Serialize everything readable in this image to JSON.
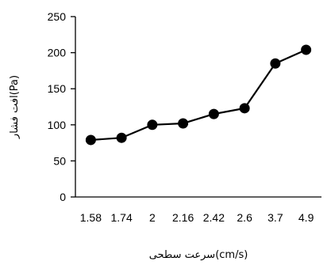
{
  "chart_data": {
    "type": "line",
    "categories": [
      "1.58",
      "1.74",
      "2",
      "2.16",
      "2.42",
      "2.6",
      "3.7",
      "4.9"
    ],
    "series": [
      {
        "values": [
          79,
          82,
          100,
          102,
          115,
          123,
          185,
          204
        ]
      }
    ],
    "xlabel": "سرعت سطحی(cm/s)",
    "ylabel": "افت فشار(Pa)",
    "ylim": [
      0,
      250
    ],
    "yticks": [
      "0",
      "50",
      "100",
      "150",
      "200",
      "250"
    ],
    "grid": false,
    "colors": {
      "line": "#000000",
      "marker": "#000000",
      "axis": "#000000"
    },
    "marker": "circle"
  }
}
